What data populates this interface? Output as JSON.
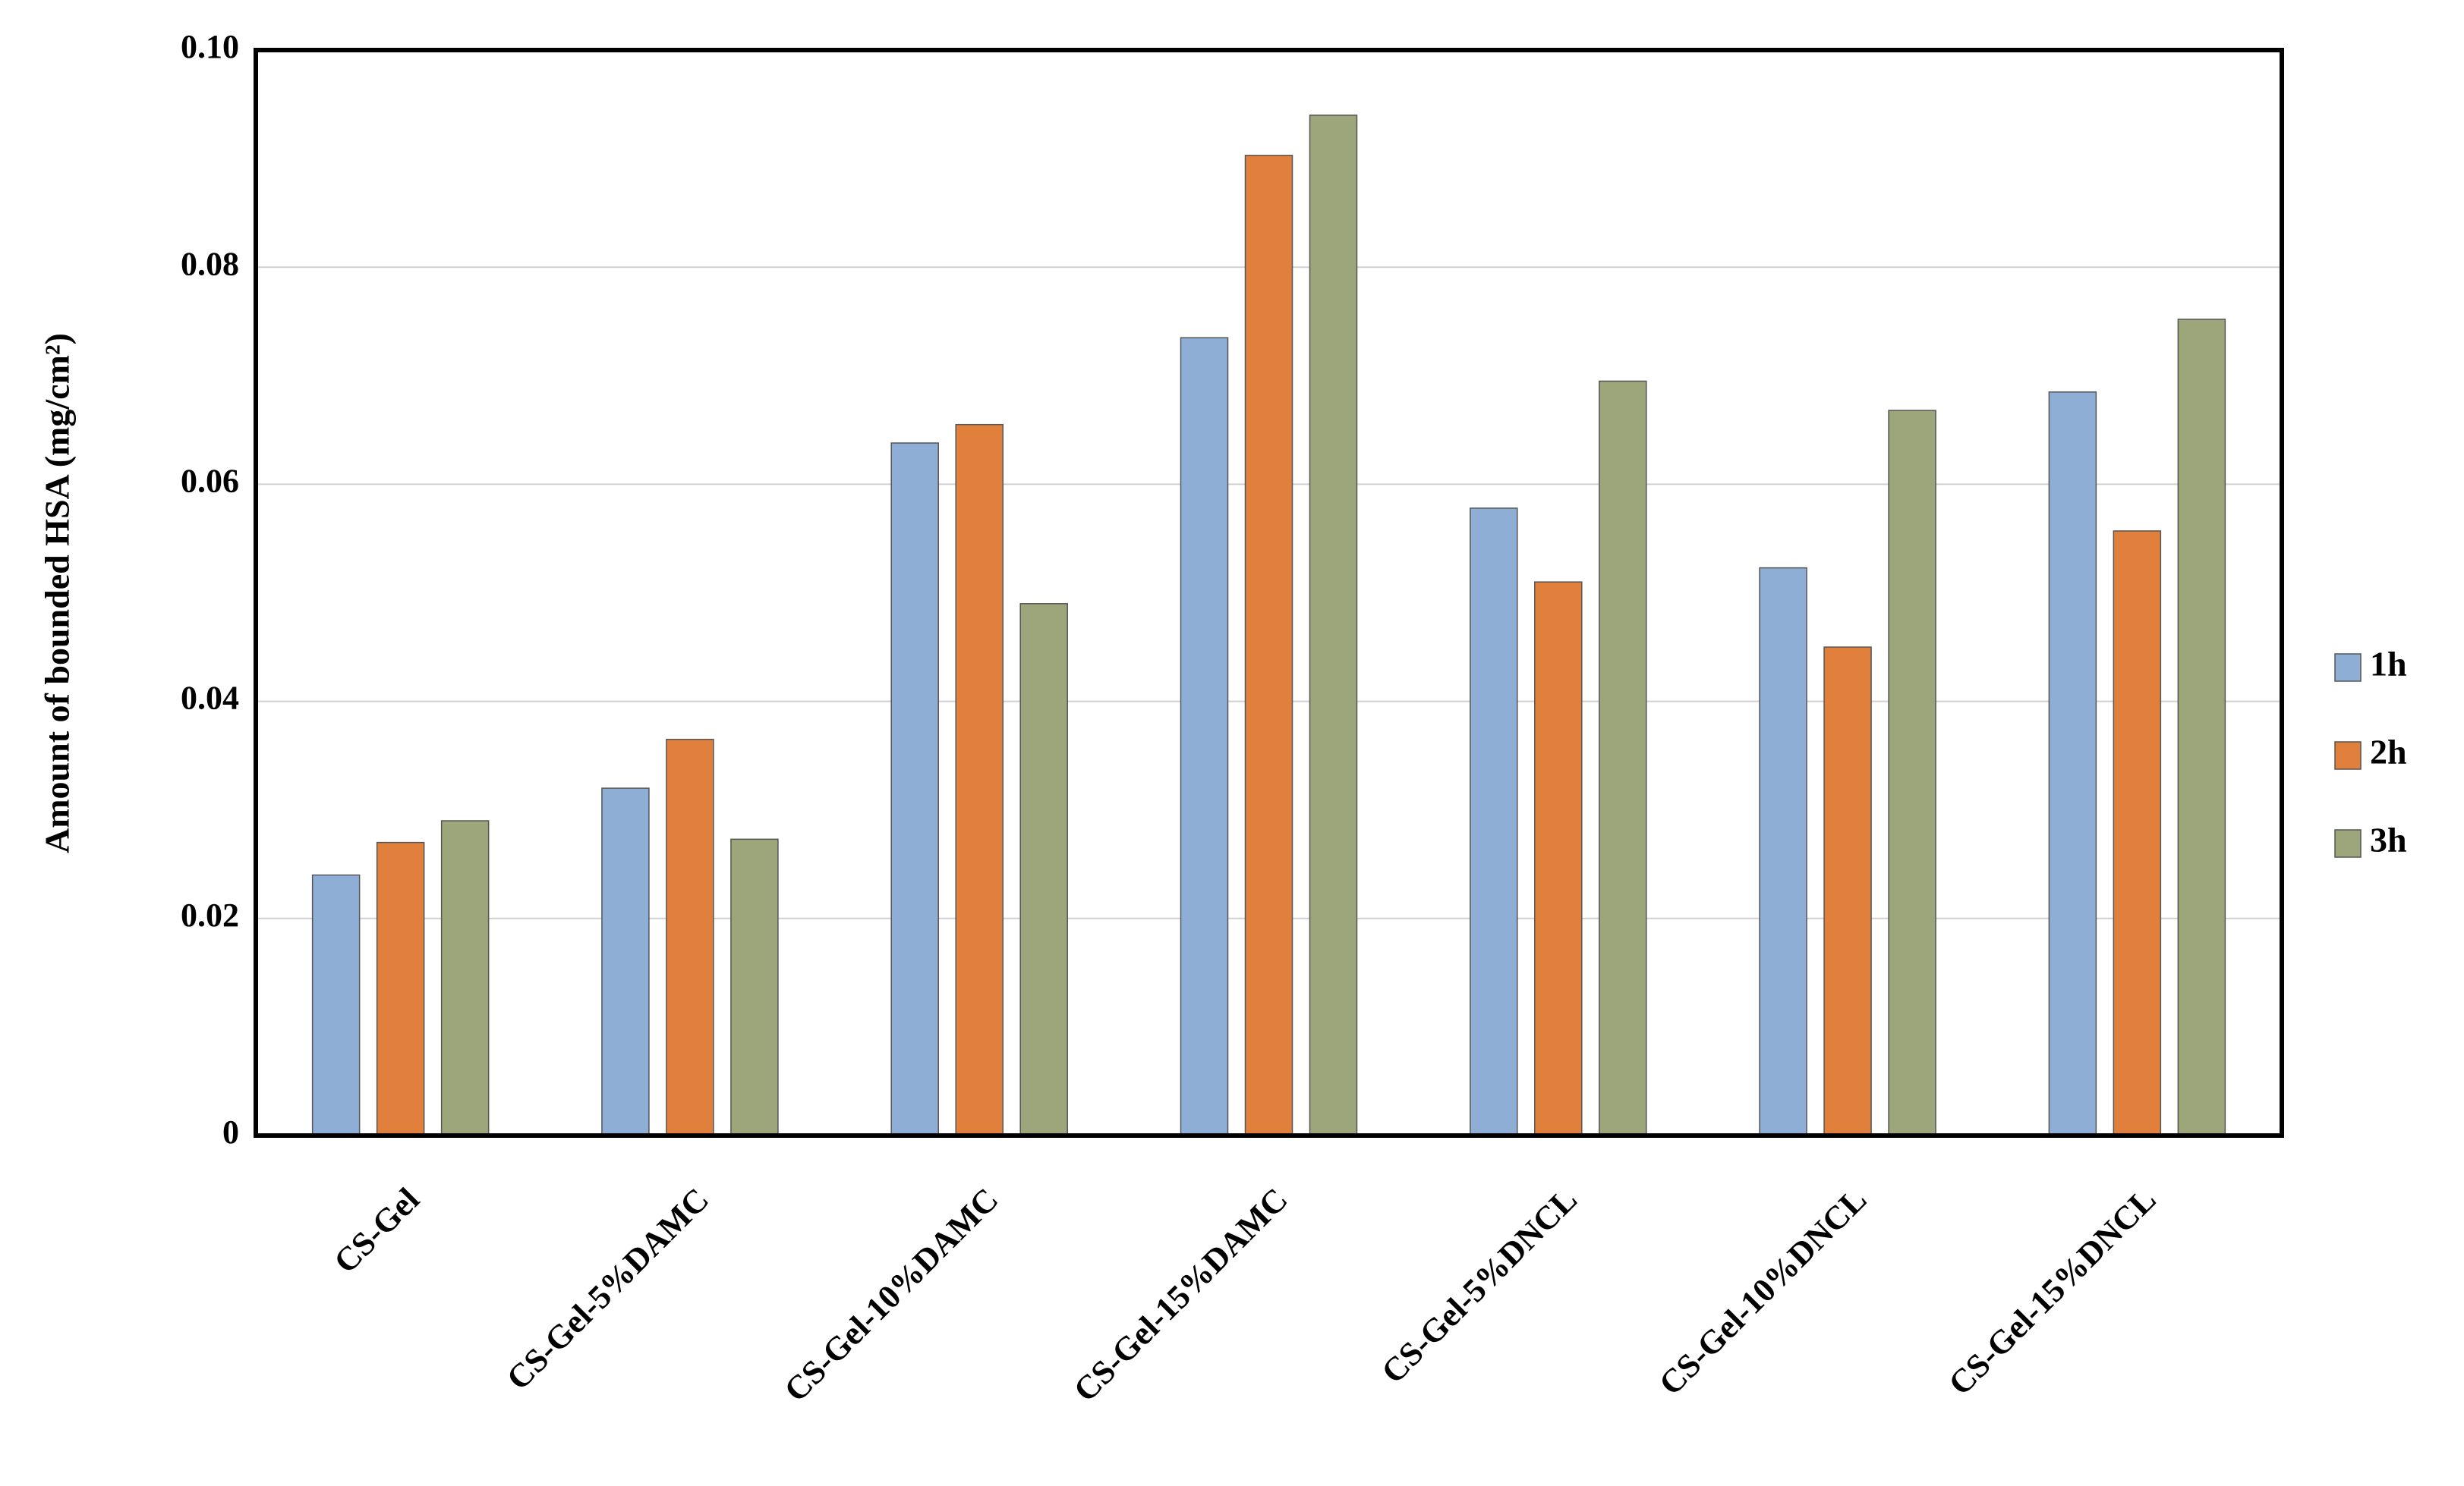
{
  "chart_data": {
    "type": "bar",
    "y_label": "Amount of bounded HSA (mg/cm²)",
    "categories": [
      "CS-Gel",
      "CS-Gel-5%DAMC",
      "CS-Gel-10%DAMC",
      "CS-Gel-15%DAMC",
      "CS-Gel-5%DNCL",
      "CS-Gel-10%DNCL",
      "CS-Gel-15%DNCL"
    ],
    "series": [
      {
        "name": "1h",
        "color": "#8eaed6",
        "values": [
          0.024,
          0.032,
          0.0638,
          0.0735,
          0.0578,
          0.0523,
          0.0685
        ]
      },
      {
        "name": "2h",
        "color": "#e0803c",
        "values": [
          0.027,
          0.0365,
          0.0655,
          0.0903,
          0.051,
          0.045,
          0.0557
        ]
      },
      {
        "name": "3h",
        "color": "#9ca67a",
        "values": [
          0.029,
          0.0273,
          0.049,
          0.094,
          0.0695,
          0.0668,
          0.0752
        ]
      }
    ],
    "ylim": [
      0,
      0.1
    ],
    "yticks": [
      0,
      0.02,
      0.04,
      0.06,
      0.08,
      {
        "value": 0.1,
        "label": "0.10"
      }
    ],
    "grid": true,
    "legend": "right"
  }
}
